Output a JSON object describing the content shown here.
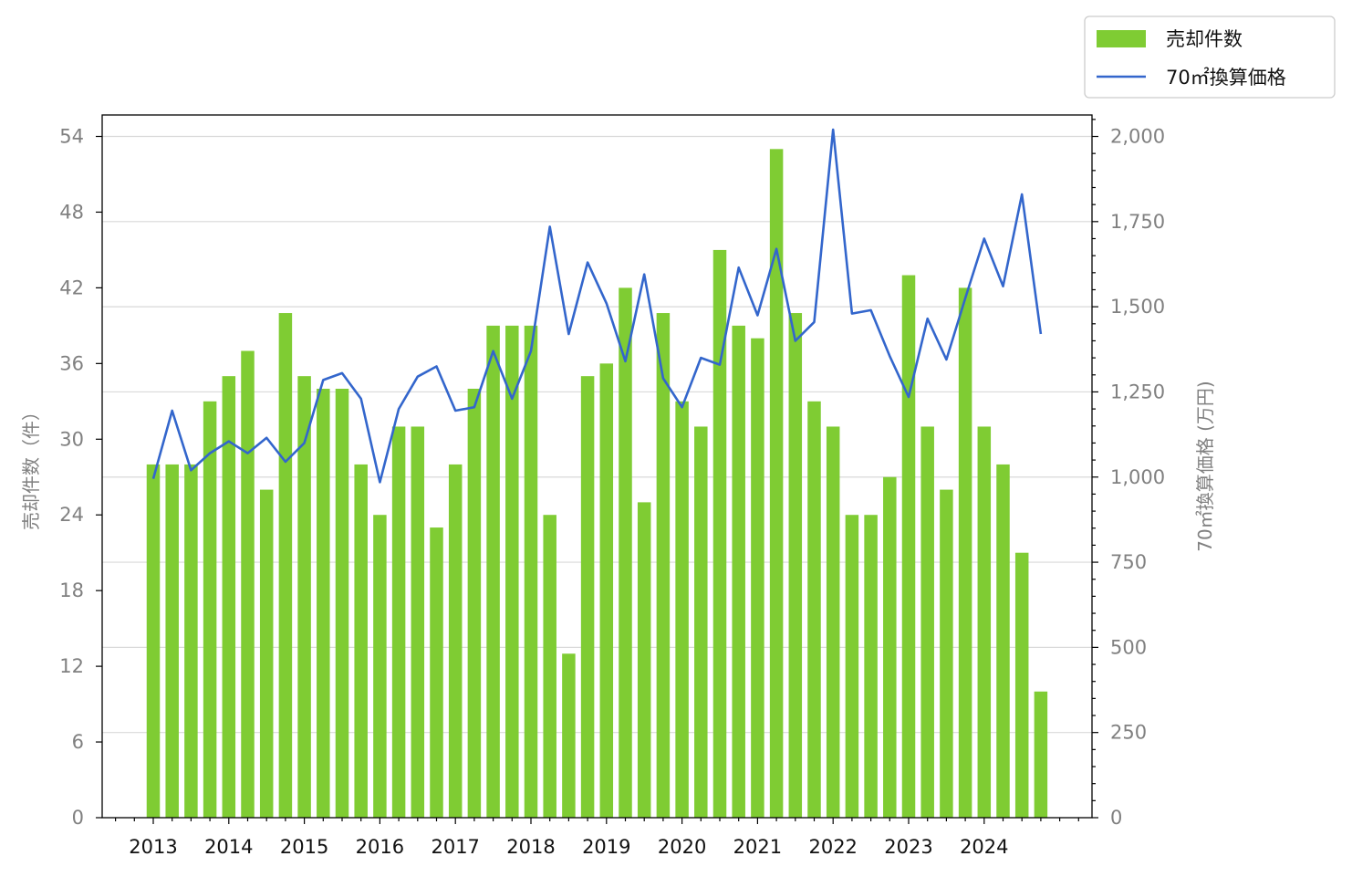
{
  "chart_data": {
    "type": "bar",
    "title": "",
    "xlabel": "",
    "ylabel": "売却件数（件）",
    "ylabel_right": "70㎡換算価格 (万円)",
    "categories": [
      "2013 Q1",
      "2013 Q2",
      "2013 Q3",
      "2013 Q4",
      "2014 Q1",
      "2014 Q2",
      "2014 Q3",
      "2014 Q4",
      "2015 Q1",
      "2015 Q2",
      "2015 Q3",
      "2015 Q4",
      "2016 Q1",
      "2016 Q2",
      "2016 Q3",
      "2016 Q4",
      "2017 Q1",
      "2017 Q2",
      "2017 Q3",
      "2017 Q4",
      "2018 Q1",
      "2018 Q2",
      "2018 Q3",
      "2018 Q4",
      "2019 Q1",
      "2019 Q2",
      "2019 Q3",
      "2019 Q4",
      "2020 Q1",
      "2020 Q2",
      "2020 Q3",
      "2020 Q4",
      "2021 Q1",
      "2021 Q2",
      "2021 Q3",
      "2021 Q4",
      "2022 Q1",
      "2022 Q2",
      "2022 Q3",
      "2022 Q4",
      "2023 Q1",
      "2023 Q2",
      "2023 Q3",
      "2023 Q4",
      "2024 Q1",
      "2024 Q2",
      "2024 Q3",
      "2024 Q4"
    ],
    "x_tick_labels": [
      "2013",
      "2014",
      "2015",
      "2016",
      "2017",
      "2018",
      "2019",
      "2020",
      "2021",
      "2022",
      "2023",
      "2024"
    ],
    "y_ticks_left": [
      "0",
      "6",
      "12",
      "18",
      "24",
      "30",
      "36",
      "42",
      "48",
      "54"
    ],
    "y_ticks_right": [
      "0",
      "250",
      "500",
      "750",
      "1,000",
      "1,250",
      "1,500",
      "1,750",
      "2,000"
    ],
    "ylim": [
      0,
      55.7
    ],
    "ylim_right": [
      0,
      2063
    ],
    "grid": true,
    "legend_position": "top-right (outside)",
    "series": [
      {
        "name": "売却件数",
        "type": "bar",
        "axis": "left",
        "color": "#7fcc33",
        "values": [
          28,
          28,
          28,
          33,
          35,
          37,
          26,
          40,
          35,
          34,
          34,
          28,
          24,
          31,
          31,
          23,
          28,
          34,
          39,
          39,
          39,
          24,
          13,
          35,
          36,
          42,
          25,
          40,
          33,
          31,
          45,
          39,
          38,
          53,
          40,
          33,
          31,
          24,
          24,
          27,
          43,
          31,
          26,
          42,
          31,
          28,
          21,
          10
        ]
      },
      {
        "name": "70㎡換算価格",
        "type": "line",
        "axis": "right",
        "color": "#3366cc",
        "values": [
          995,
          1195,
          1020,
          1070,
          1105,
          1070,
          1115,
          1045,
          1100,
          1285,
          1305,
          1230,
          985,
          1200,
          1295,
          1325,
          1195,
          1205,
          1370,
          1230,
          1370,
          1735,
          1420,
          1630,
          1510,
          1340,
          1595,
          1290,
          1205,
          1350,
          1330,
          1615,
          1475,
          1670,
          1400,
          1455,
          2020,
          1480,
          1490,
          1355,
          1235,
          1465,
          1345,
          1525,
          1700,
          1560,
          1830,
          1420
        ]
      }
    ]
  }
}
